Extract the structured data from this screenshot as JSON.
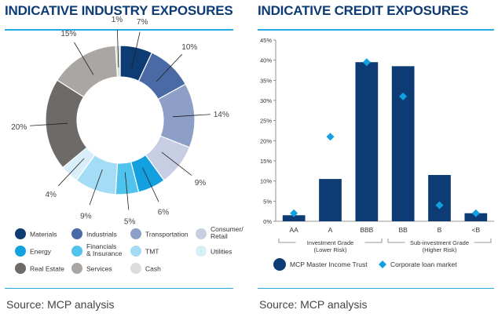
{
  "left": {
    "title": "INDICATIVE INDUSTRY EXPOSURES",
    "source": "Source: MCP analysis"
  },
  "right": {
    "title": "INDICATIVE CREDIT EXPOSURES",
    "source": "Source: MCP analysis"
  },
  "chart_data": [
    {
      "type": "pie",
      "donut": true,
      "slices": [
        {
          "name": "Materials",
          "value": 7,
          "label": "7%",
          "color": "#0d3b74"
        },
        {
          "name": "Industrials",
          "value": 10,
          "label": "10%",
          "color": "#4a6aa5"
        },
        {
          "name": "Transportation",
          "value": 14,
          "label": "14%",
          "color": "#8d9fc7"
        },
        {
          "name": "Consumer/ Retail",
          "value": 9,
          "label": "9%",
          "color": "#c7cde3"
        },
        {
          "name": "Energy",
          "value": 6,
          "label": "6%",
          "color": "#13a0e0"
        },
        {
          "name": "Financials & Insurance",
          "value": 5,
          "label": "5%",
          "color": "#4fc3ec"
        },
        {
          "name": "TMT",
          "value": 9,
          "label": "9%",
          "color": "#a3dcf4"
        },
        {
          "name": "Utilities",
          "value": 4,
          "label": "4%",
          "color": "#d8eef9"
        },
        {
          "name": "Real Estate",
          "value": 20,
          "label": "20%",
          "color": "#6d6a67"
        },
        {
          "name": "Services",
          "value": 15,
          "label": "15%",
          "color": "#aaa6a3"
        },
        {
          "name": "Cash",
          "value": 1,
          "label": "1%",
          "color": "#dedcdb"
        }
      ],
      "legend": [
        {
          "label": "Materials",
          "color": "#0d3b74"
        },
        {
          "label": "Industrials",
          "color": "#4a6aa5"
        },
        {
          "label": "Transportation",
          "color": "#8d9fc7"
        },
        {
          "label": "Consumer/\nRetail",
          "color": "#c7cde3"
        },
        {
          "label": "Energy",
          "color": "#13a0e0"
        },
        {
          "label": "Financials\n& Insurance",
          "color": "#4fc3ec"
        },
        {
          "label": "TMT",
          "color": "#a3dcf4"
        },
        {
          "label": "Utilities",
          "color": "#d8eef9"
        },
        {
          "label": "Real Estate",
          "color": "#6d6a67"
        },
        {
          "label": "Services",
          "color": "#aaa6a3"
        },
        {
          "label": "Cash",
          "color": "#dedcdb"
        }
      ],
      "legend_position": "bottom"
    },
    {
      "type": "bar",
      "categories": [
        "AA",
        "A",
        "BBB",
        "BB",
        "B",
        "<B"
      ],
      "series": [
        {
          "name": "MCP Master Income Trust",
          "kind": "bar",
          "color": "#0d3b74",
          "values": [
            1.5,
            10.5,
            39.5,
            38.5,
            11.5,
            2.0
          ]
        },
        {
          "name": "Corporate loan market",
          "kind": "marker",
          "color": "#13a0e0",
          "values": [
            2.0,
            21.0,
            39.5,
            31.0,
            4.0,
            2.0
          ]
        }
      ],
      "ylim": [
        0,
        45
      ],
      "yticks": [
        "0%",
        "5%",
        "10%",
        "15%",
        "20%",
        "25%",
        "30%",
        "35%",
        "40%",
        "45%"
      ],
      "groups": [
        {
          "label": "Investment Grade\n(Lower Risk)",
          "from": 0,
          "to": 2
        },
        {
          "label": "Sub-investment Grade\n(Higher Risk)",
          "from": 3,
          "to": 5
        }
      ],
      "grid": false,
      "legend_position": "bottom"
    }
  ]
}
